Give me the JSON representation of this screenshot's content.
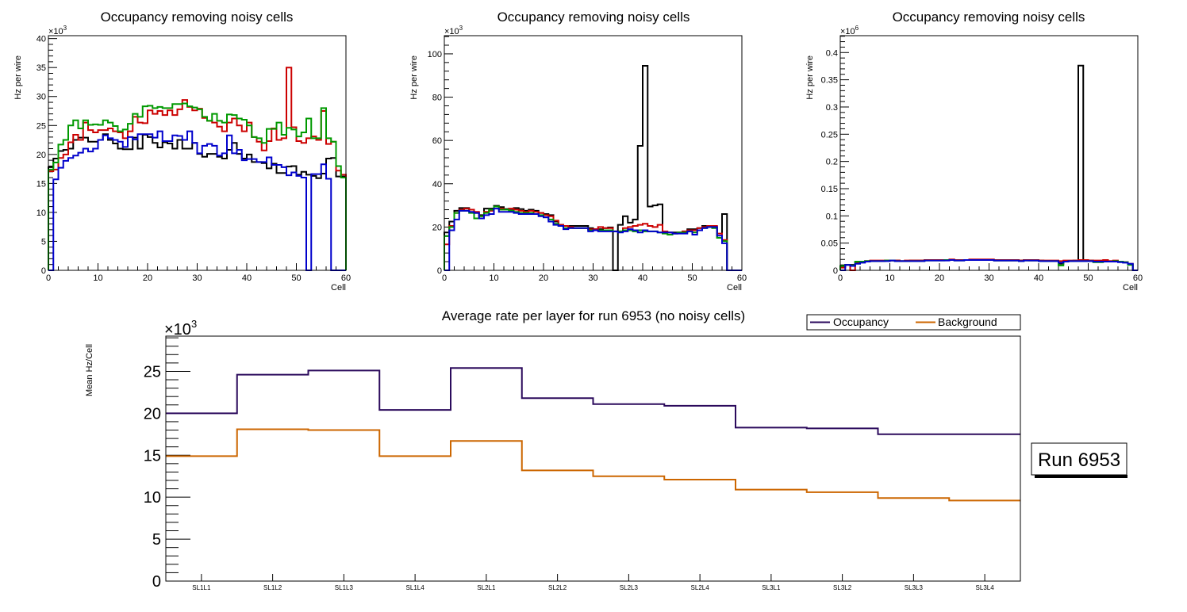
{
  "chart_data": [
    {
      "type": "line",
      "style": "step-histogram",
      "title": "Occupancy removing noisy cells",
      "xlabel": "Cell",
      "ylabel": "Hz per wire",
      "y_multiplier": "×10",
      "y_exponent": "3",
      "xlim": [
        0,
        60
      ],
      "ylim": [
        0,
        40.5
      ],
      "xticks": [
        "0",
        "10",
        "20",
        "30",
        "40",
        "50",
        "60"
      ],
      "yticks": [
        "0",
        "5",
        "10",
        "15",
        "20",
        "25",
        "30",
        "35",
        "40"
      ],
      "ytick_values": [
        0,
        5,
        10,
        15,
        20,
        25,
        30,
        35,
        40
      ],
      "xtick_values": [
        0,
        10,
        20,
        30,
        40,
        50,
        60
      ],
      "series": [
        {
          "name": "black",
          "color": "#000000",
          "values": [
            17.8,
            19.3,
            20.6,
            20.8,
            21.0,
            22.5,
            22.9,
            22.9,
            22.2,
            22.2,
            22.5,
            23.5,
            22.5,
            21.9,
            21.0,
            20.9,
            20.9,
            22.9,
            21.0,
            23.4,
            23.0,
            22.0,
            21.2,
            22.1,
            21.9,
            21.0,
            22.5,
            21.0,
            21.0,
            22.0,
            20.1,
            19.6,
            20.1,
            20.1,
            19.6,
            19.3,
            20.8,
            22.0,
            20.1,
            19.3,
            20.0,
            18.7,
            18.7,
            18.5,
            17.6,
            18.4,
            16.8,
            16.8,
            17.9,
            18.0,
            16.5,
            17.0,
            16.5,
            16.3,
            15.9,
            16.7,
            19.3,
            19.4,
            16.2,
            16.2
          ]
        },
        {
          "name": "red",
          "color": "#cc0000",
          "values": [
            17.1,
            17.4,
            19.4,
            20.0,
            22.1,
            23.4,
            22.5,
            25.5,
            24.2,
            23.8,
            24.2,
            24.2,
            24.5,
            24.0,
            23.8,
            22.8,
            24.0,
            26.5,
            25.5,
            25.4,
            27.6,
            27.0,
            27.5,
            26.8,
            27.6,
            26.8,
            27.8,
            29.4,
            28.2,
            27.6,
            27.9,
            26.3,
            25.8,
            25.5,
            24.8,
            24.0,
            25.5,
            26.2,
            25.0,
            24.0,
            25.5,
            23.0,
            22.2,
            20.7,
            22.3,
            24.5,
            22.5,
            22.8,
            35.0,
            24.7,
            22.3,
            22.0,
            22.8,
            23.1,
            22.5,
            27.5,
            21.8,
            22.2,
            17.2,
            16.5
          ]
        },
        {
          "name": "green",
          "color": "#009900",
          "values": [
            17.4,
            18.6,
            21.7,
            22.5,
            25.0,
            25.9,
            24.5,
            25.9,
            25.1,
            25.2,
            25.1,
            25.9,
            25.5,
            24.9,
            24.0,
            24.3,
            25.3,
            27.0,
            26.5,
            28.3,
            28.4,
            28.0,
            28.2,
            28.0,
            28.0,
            28.7,
            28.7,
            28.8,
            28.3,
            28.1,
            27.8,
            26.5,
            25.8,
            27.0,
            25.8,
            25.5,
            26.9,
            26.8,
            26.2,
            26.0,
            25.0,
            23.0,
            22.8,
            22.0,
            24.4,
            24.4,
            25.5,
            23.4,
            24.6,
            24.3,
            23.1,
            23.8,
            26.2,
            22.8,
            22.8,
            28.0,
            22.8,
            22.2,
            18.0,
            16.0
          ]
        },
        {
          "name": "blue",
          "color": "#0000cc",
          "values": [
            0,
            15.7,
            17.7,
            18.9,
            19.4,
            19.8,
            20.3,
            21.0,
            20.5,
            21.0,
            22.5,
            23.3,
            22.8,
            22.5,
            22.2,
            21.3,
            23.0,
            22.6,
            23.5,
            23.5,
            23.5,
            22.9,
            24.0,
            22.3,
            22.3,
            23.3,
            23.2,
            22.5,
            24.0,
            22.0,
            20.2,
            21.5,
            21.8,
            21.5,
            19.8,
            20.2,
            23.3,
            20.2,
            20.8,
            19.0,
            19.2,
            19.2,
            18.7,
            18.7,
            19.5,
            18.2,
            18.2,
            17.8,
            16.4,
            16.9,
            16.3,
            16.0,
            0,
            16.6,
            16.6,
            18.3,
            15.8,
            0,
            0,
            0
          ]
        }
      ]
    },
    {
      "type": "line",
      "style": "step-histogram",
      "title": "Occupancy removing noisy cells",
      "xlabel": "Cell",
      "ylabel": "Hz per wire",
      "y_multiplier": "×10",
      "y_exponent": "3",
      "xlim": [
        0,
        60
      ],
      "ylim": [
        0,
        108.4
      ],
      "xticks": [
        "0",
        "10",
        "20",
        "30",
        "40",
        "50",
        "60"
      ],
      "yticks": [
        "0",
        "20",
        "40",
        "60",
        "80",
        "100"
      ],
      "ytick_values": [
        0,
        20,
        40,
        60,
        80,
        100
      ],
      "xtick_values": [
        0,
        10,
        20,
        30,
        40,
        50,
        60
      ],
      "series": [
        {
          "name": "black",
          "color": "#000000",
          "values": [
            17.5,
            22.5,
            27.5,
            28.8,
            28.8,
            28.0,
            26.5,
            25.5,
            28.5,
            28.5,
            29.8,
            29.2,
            28.3,
            28.3,
            28.8,
            28.3,
            27.5,
            28.0,
            27.5,
            26.5,
            26.0,
            25.5,
            22.5,
            21.0,
            20.5,
            20.5,
            20.5,
            20.5,
            20.5,
            19.5,
            19.0,
            19.0,
            19.5,
            19.8,
            0,
            21.0,
            25.0,
            22.0,
            23.5,
            57.5,
            94.5,
            29.5,
            30.0,
            30.5,
            17.5,
            17.5,
            17.5,
            17.5,
            18.0,
            19.0,
            19.0,
            19.5,
            20.5,
            20.5,
            20.0,
            15.0,
            26.0,
            0,
            0,
            0
          ]
        },
        {
          "name": "red",
          "color": "#cc0000",
          "values": [
            12.0,
            20.5,
            26.5,
            28.0,
            28.5,
            28.0,
            27.0,
            25.0,
            27.0,
            27.5,
            29.5,
            28.5,
            28.0,
            28.5,
            28.0,
            27.5,
            27.0,
            27.5,
            27.0,
            26.5,
            25.5,
            25.0,
            23.0,
            21.0,
            20.5,
            20.0,
            19.5,
            19.5,
            19.5,
            19.0,
            19.0,
            20.0,
            19.5,
            19.5,
            18.0,
            18.0,
            19.5,
            20.0,
            20.5,
            21.0,
            21.5,
            20.5,
            20.0,
            21.0,
            18.0,
            17.5,
            17.0,
            17.5,
            18.0,
            18.5,
            18.5,
            19.5,
            20.0,
            20.5,
            20.5,
            17.0,
            14.0,
            0,
            0,
            0
          ]
        },
        {
          "name": "green",
          "color": "#009900",
          "values": [
            15.8,
            20.0,
            26.5,
            27.5,
            27.5,
            26.5,
            24.0,
            25.0,
            26.5,
            28.0,
            29.5,
            28.0,
            28.0,
            27.5,
            27.0,
            26.5,
            26.5,
            26.5,
            26.0,
            25.5,
            24.5,
            23.5,
            21.5,
            20.5,
            19.5,
            19.5,
            19.5,
            19.5,
            19.5,
            18.5,
            18.5,
            18.5,
            18.5,
            18.5,
            18.0,
            18.0,
            18.5,
            18.5,
            18.0,
            18.5,
            18.0,
            18.0,
            18.0,
            17.5,
            17.0,
            16.5,
            17.0,
            17.5,
            17.5,
            18.0,
            17.5,
            18.5,
            19.5,
            20.0,
            19.5,
            15.0,
            13.5,
            0,
            0,
            0
          ]
        },
        {
          "name": "blue",
          "color": "#0000cc",
          "values": [
            0,
            18.5,
            23.5,
            27.5,
            27.5,
            27.0,
            26.5,
            24.0,
            25.5,
            26.0,
            28.5,
            27.0,
            27.0,
            27.0,
            26.5,
            26.0,
            26.0,
            26.0,
            26.0,
            25.0,
            24.5,
            22.5,
            21.0,
            20.5,
            19.0,
            19.5,
            19.5,
            19.5,
            19.5,
            18.0,
            18.5,
            18.0,
            18.0,
            18.0,
            18.0,
            17.5,
            18.0,
            19.0,
            18.5,
            17.5,
            18.5,
            18.0,
            18.0,
            17.5,
            17.5,
            17.5,
            17.0,
            17.0,
            17.0,
            18.0,
            16.5,
            18.5,
            19.5,
            20.0,
            20.0,
            16.0,
            12.5,
            0,
            0,
            0
          ]
        }
      ]
    },
    {
      "type": "line",
      "style": "step-histogram",
      "title": "Occupancy removing noisy cells",
      "xlabel": "Cell",
      "ylabel": "Hz per wire",
      "y_multiplier": "×10",
      "y_exponent": "6",
      "xlim": [
        0,
        60
      ],
      "ylim": [
        0,
        0.431
      ],
      "xticks": [
        "0",
        "10",
        "20",
        "30",
        "40",
        "50",
        "60"
      ],
      "yticks": [
        "0",
        "0.05",
        "0.1",
        "0.15",
        "0.2",
        "0.25",
        "0.3",
        "0.35",
        "0.4"
      ],
      "ytick_values": [
        0,
        0.05,
        0.1,
        0.15,
        0.2,
        0.25,
        0.3,
        0.35,
        0.4
      ],
      "xtick_values": [
        0,
        10,
        20,
        30,
        40,
        50,
        60
      ],
      "series": [
        {
          "name": "black",
          "color": "#000000",
          "values": [
            0.006,
            0.01,
            0.01,
            0.015,
            0.016,
            0.017,
            0.017,
            0.017,
            0.017,
            0.018,
            0.018,
            0.018,
            0.017,
            0.017,
            0.018,
            0.018,
            0.018,
            0.019,
            0.019,
            0.019,
            0.019,
            0.019,
            0.019,
            0.019,
            0.019,
            0.019,
            0.019,
            0.019,
            0.019,
            0.019,
            0.019,
            0.018,
            0.018,
            0.018,
            0.018,
            0.018,
            0.018,
            0.019,
            0.018,
            0.018,
            0.018,
            0.017,
            0.017,
            0.017,
            0.012,
            0.017,
            0.017,
            0.018,
            0.376,
            0.018,
            0.018,
            0.017,
            0.017,
            0.016,
            0.017,
            0.017,
            0.016,
            0.015,
            0.011,
            0
          ]
        },
        {
          "name": "red",
          "color": "#cc0000",
          "values": [
            0.005,
            0.01,
            0,
            0.013,
            0.016,
            0.017,
            0.018,
            0.018,
            0.018,
            0.018,
            0.018,
            0.018,
            0.017,
            0.018,
            0.018,
            0.018,
            0.018,
            0.019,
            0.019,
            0.019,
            0.019,
            0.019,
            0.02,
            0.019,
            0.019,
            0.019,
            0.02,
            0.02,
            0.02,
            0.02,
            0.02,
            0.019,
            0.019,
            0.019,
            0.019,
            0.019,
            0.018,
            0.019,
            0.019,
            0.019,
            0.018,
            0.018,
            0.018,
            0.018,
            0.017,
            0.018,
            0.018,
            0.018,
            0.019,
            0.019,
            0.018,
            0.018,
            0.018,
            0.019,
            0.017,
            0.018,
            0.016,
            0.015,
            0.012,
            0
          ]
        },
        {
          "name": "green",
          "color": "#009900",
          "values": [
            0.008,
            0.01,
            0.009,
            0.016,
            0.016,
            0.017,
            0.017,
            0.017,
            0.017,
            0.018,
            0.018,
            0.017,
            0.017,
            0.017,
            0.017,
            0.017,
            0.017,
            0.018,
            0.018,
            0.018,
            0.018,
            0.019,
            0.019,
            0.018,
            0.018,
            0.019,
            0.019,
            0.019,
            0.019,
            0.019,
            0.019,
            0.018,
            0.018,
            0.018,
            0.018,
            0.018,
            0.017,
            0.018,
            0.018,
            0.018,
            0.017,
            0.017,
            0.017,
            0.017,
            0.009,
            0.016,
            0.017,
            0.017,
            0.017,
            0.017,
            0.017,
            0.015,
            0.015,
            0.016,
            0.016,
            0.017,
            0.016,
            0.015,
            0.01,
            0
          ]
        },
        {
          "name": "blue",
          "color": "#0000cc",
          "values": [
            0,
            0.01,
            0.008,
            0.012,
            0.014,
            0.016,
            0.017,
            0.017,
            0.017,
            0.017,
            0.018,
            0.017,
            0.017,
            0.017,
            0.017,
            0.017,
            0.017,
            0.018,
            0.018,
            0.018,
            0.018,
            0.018,
            0.019,
            0.018,
            0.018,
            0.019,
            0.019,
            0.019,
            0.019,
            0.019,
            0.019,
            0.018,
            0.018,
            0.018,
            0.018,
            0.018,
            0.017,
            0.018,
            0.018,
            0.018,
            0.017,
            0.017,
            0.017,
            0.017,
            0.014,
            0.016,
            0.017,
            0.017,
            0.017,
            0.017,
            0.017,
            0.016,
            0.016,
            0.016,
            0.016,
            0.016,
            0.015,
            0.014,
            0.012,
            0
          ]
        }
      ]
    },
    {
      "type": "line",
      "style": "step-histogram",
      "title": "Average rate per layer for run 6953 (no noisy cells)",
      "xlabel": "",
      "ylabel": "Mean Hz/Cell",
      "y_multiplier": "×10",
      "y_exponent": "3",
      "ylim": [
        0,
        29.2
      ],
      "yticks": [
        "0",
        "5",
        "10",
        "15",
        "20",
        "25"
      ],
      "ytick_values": [
        0,
        5,
        10,
        15,
        20,
        25
      ],
      "categories": [
        "SL1L1",
        "SL1L2",
        "SL1L3",
        "SL1L4",
        "SL2L1",
        "SL2L2",
        "SL2L3",
        "SL2L4",
        "SL3L1",
        "SL3L2",
        "SL3L3",
        "SL3L4"
      ],
      "legend_position": "top-right",
      "series": [
        {
          "name": "Occupancy",
          "color": "#2b0a5c",
          "values": [
            20.0,
            24.6,
            25.1,
            20.4,
            25.4,
            21.8,
            21.1,
            20.9,
            18.3,
            18.2,
            17.5,
            17.5
          ]
        },
        {
          "name": "Background",
          "color": "#cc6600",
          "values": [
            14.9,
            18.1,
            18.0,
            14.9,
            16.7,
            13.2,
            12.5,
            12.1,
            10.9,
            10.6,
            9.9,
            9.6
          ]
        }
      ],
      "annotation": "Run 6953"
    }
  ]
}
